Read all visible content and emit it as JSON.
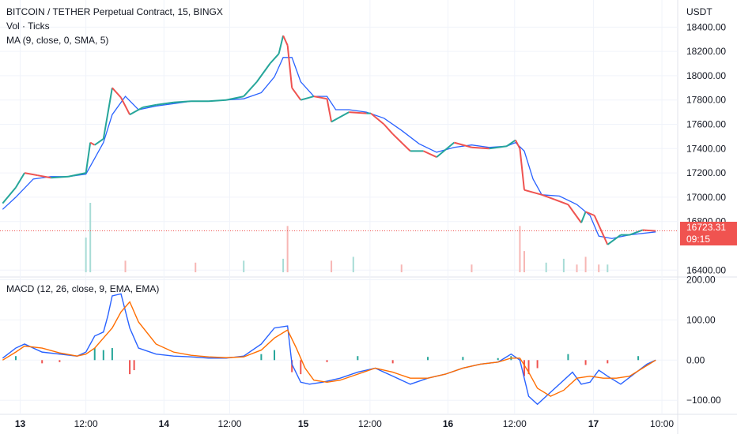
{
  "header": {
    "symbol_title": "BITCOIN / TETHER Perpetual Contract, 15, BINGX",
    "volume_label": "Vol · Ticks",
    "ma_label": "MA (9, close, 0, SMA, 5)",
    "currency": "USDT",
    "macd_label": "MACD (12, 26, close, 9, EMA, EMA)"
  },
  "last_price": {
    "value": "16723.31",
    "countdown": "09:15"
  },
  "colors": {
    "up": "#26a69a",
    "down": "#ef5350",
    "ma_line": "#2962ff",
    "macd_line": "#2962ff",
    "signal_line": "#ff6d00",
    "hist_up": "#26a69a",
    "hist_down": "#ef5350",
    "last_price_line": "#f05350"
  },
  "chart_data": [
    {
      "type": "line",
      "name": "price",
      "x_ticks": [
        "13",
        "12:00",
        "14",
        "12:00",
        "15",
        "12:00",
        "16",
        "12:00",
        "17",
        "10:00"
      ],
      "x_tick_positions": [
        0.05,
        0.8,
        1.69,
        2.44,
        3.28,
        4.04,
        4.93,
        5.69,
        6.59,
        7.37
      ],
      "y_ticks": [
        "16400.00",
        "16800.00",
        "17000.00",
        "17200.00",
        "17400.00",
        "17600.00",
        "17800.00",
        "18000.00",
        "18200.00",
        "18400.00"
      ],
      "ylim": [
        16350,
        18480
      ],
      "close_series": {
        "x": [
          -0.15,
          0.0,
          0.1,
          0.25,
          0.4,
          0.6,
          0.8,
          0.85,
          0.9,
          1.0,
          1.1,
          1.2,
          1.3,
          1.45,
          1.6,
          1.8,
          2.0,
          2.2,
          2.4,
          2.6,
          2.75,
          2.9,
          3.0,
          3.05,
          3.1,
          3.15,
          3.25,
          3.4,
          3.55,
          3.6,
          3.8,
          4.0,
          4.05,
          4.2,
          4.3,
          4.5,
          4.65,
          4.8,
          5.0,
          5.2,
          5.4,
          5.6,
          5.7,
          5.75,
          5.8,
          6.0,
          6.15,
          6.3,
          6.45,
          6.5,
          6.6,
          6.75,
          6.9,
          7.0,
          7.15,
          7.3
        ],
        "values": [
          16950,
          17080,
          17200,
          17180,
          17160,
          17170,
          17200,
          17450,
          17430,
          17480,
          17900,
          17820,
          17680,
          17740,
          17760,
          17780,
          17790,
          17790,
          17800,
          17830,
          17950,
          18100,
          18180,
          18330,
          18250,
          17900,
          17800,
          17830,
          17810,
          17620,
          17700,
          17690,
          17690,
          17600,
          17520,
          17380,
          17380,
          17330,
          17450,
          17410,
          17400,
          17420,
          17470,
          17400,
          17060,
          17020,
          16980,
          16940,
          16790,
          16880,
          16850,
          16610,
          16690,
          16690,
          16730,
          16723
        ]
      },
      "ma_series": {
        "x": [
          -0.15,
          0.0,
          0.2,
          0.4,
          0.6,
          0.8,
          0.9,
          1.0,
          1.1,
          1.25,
          1.4,
          1.6,
          1.8,
          2.0,
          2.2,
          2.4,
          2.6,
          2.8,
          2.95,
          3.05,
          3.15,
          3.25,
          3.4,
          3.55,
          3.65,
          3.8,
          4.0,
          4.2,
          4.4,
          4.6,
          4.8,
          5.0,
          5.2,
          5.4,
          5.6,
          5.7,
          5.8,
          5.9,
          6.0,
          6.2,
          6.4,
          6.55,
          6.65,
          6.8,
          7.0,
          7.3
        ],
        "values": [
          16900,
          17000,
          17150,
          17170,
          17170,
          17190,
          17320,
          17450,
          17680,
          17830,
          17720,
          17750,
          17770,
          17790,
          17790,
          17800,
          17810,
          17860,
          17990,
          18150,
          18150,
          17950,
          17830,
          17830,
          17720,
          17720,
          17700,
          17650,
          17550,
          17440,
          17370,
          17410,
          17430,
          17410,
          17420,
          17450,
          17380,
          17150,
          17020,
          17010,
          16940,
          16850,
          16680,
          16660,
          16690,
          16715
        ]
      }
    },
    {
      "type": "bar",
      "name": "volume",
      "x": [
        0.8,
        0.85,
        1.25,
        2.05,
        2.6,
        3.05,
        3.1,
        3.6,
        3.85,
        4.4,
        5.2,
        5.75,
        5.8,
        6.05,
        6.25,
        6.4,
        6.5,
        6.65,
        6.75
      ],
      "values": [
        180,
        360,
        60,
        50,
        60,
        70,
        240,
        60,
        80,
        40,
        40,
        240,
        110,
        50,
        70,
        40,
        80,
        40,
        40
      ],
      "up": [
        true,
        true,
        false,
        false,
        true,
        true,
        false,
        false,
        true,
        false,
        false,
        false,
        false,
        true,
        true,
        false,
        false,
        false,
        true
      ]
    },
    {
      "type": "line",
      "name": "macd",
      "y_ticks": [
        "200.00",
        "100.00",
        "0.00",
        "−100.00"
      ],
      "ylim": [
        -135,
        205
      ],
      "macd_series": {
        "x": [
          -0.15,
          0.0,
          0.1,
          0.3,
          0.5,
          0.7,
          0.8,
          0.9,
          1.0,
          1.05,
          1.1,
          1.2,
          1.3,
          1.4,
          1.6,
          1.8,
          2.0,
          2.2,
          2.4,
          2.6,
          2.8,
          2.95,
          3.1,
          3.15,
          3.25,
          3.35,
          3.5,
          3.7,
          3.9,
          4.1,
          4.3,
          4.5,
          4.7,
          4.9,
          5.1,
          5.3,
          5.5,
          5.65,
          5.75,
          5.85,
          5.95,
          6.1,
          6.2,
          6.35,
          6.45,
          6.55,
          6.65,
          6.75,
          6.9,
          7.05,
          7.2,
          7.3
        ],
        "values": [
          5,
          30,
          40,
          20,
          15,
          10,
          20,
          60,
          70,
          110,
          160,
          165,
          80,
          30,
          15,
          10,
          8,
          5,
          5,
          10,
          40,
          80,
          85,
          -10,
          -55,
          -60,
          -55,
          -45,
          -30,
          -20,
          -40,
          -60,
          -45,
          -35,
          -20,
          -10,
          -5,
          15,
          0,
          -90,
          -110,
          -80,
          -60,
          -30,
          -60,
          -55,
          -25,
          -40,
          -60,
          -35,
          -10,
          0
        ]
      },
      "signal_series": {
        "x": [
          -0.15,
          0.0,
          0.1,
          0.3,
          0.5,
          0.7,
          0.8,
          0.9,
          1.0,
          1.1,
          1.2,
          1.3,
          1.4,
          1.6,
          1.8,
          2.0,
          2.2,
          2.4,
          2.6,
          2.8,
          2.95,
          3.1,
          3.2,
          3.3,
          3.4,
          3.55,
          3.7,
          3.9,
          4.1,
          4.3,
          4.5,
          4.7,
          4.9,
          5.1,
          5.3,
          5.5,
          5.65,
          5.75,
          5.85,
          5.95,
          6.1,
          6.25,
          6.4,
          6.55,
          6.7,
          6.85,
          7.0,
          7.15,
          7.3
        ],
        "values": [
          0,
          20,
          35,
          30,
          18,
          10,
          15,
          30,
          55,
          80,
          120,
          145,
          95,
          40,
          20,
          12,
          8,
          6,
          8,
          25,
          55,
          75,
          30,
          -20,
          -50,
          -55,
          -50,
          -35,
          -20,
          -30,
          -45,
          -45,
          -35,
          -20,
          -10,
          -5,
          5,
          5,
          -30,
          -70,
          -90,
          -75,
          -45,
          -40,
          -45,
          -45,
          -40,
          -20,
          0
        ]
      },
      "histogram": {
        "x": [
          0.0,
          0.3,
          0.5,
          0.9,
          1.0,
          1.1,
          1.3,
          1.35,
          2.8,
          2.95,
          3.15,
          3.25,
          3.55,
          3.9,
          4.3,
          4.7,
          5.1,
          5.5,
          5.65,
          5.8,
          5.85,
          5.95,
          6.3,
          6.5,
          6.75,
          7.1
        ],
        "values": [
          10,
          -8,
          -5,
          30,
          25,
          30,
          -35,
          -25,
          15,
          25,
          -30,
          -35,
          -5,
          10,
          -8,
          8,
          8,
          5,
          10,
          -40,
          -35,
          -20,
          15,
          -12,
          -8,
          10
        ]
      }
    }
  ]
}
